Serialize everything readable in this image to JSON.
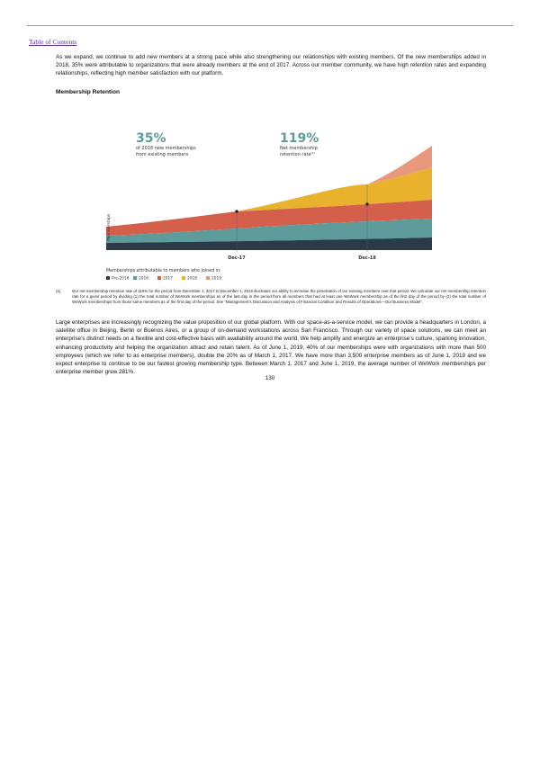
{
  "header": {
    "link": "Table of Contents"
  },
  "paragraphs": [
    "As we expand, we continue to add new members at a strong pace while also strengthening our relationships with existing members. Of the new memberships added in 2018, 35% were attributable to organizations that were already members at the end of 2017. Across our member community, we have high retention rates and expanding relationships, reflecting high member satisfaction with our platform.",
    "Large enterprises are increasingly recognizing the value proposition of our global platform. With our space-as-a-service model, we can provide a headquarters in London, a satellite office in Beijing, Berlin or Buenos Aires, or a group of on-demand workstations across San Francisco. Through our variety of space solutions, we can meet an enterprise’s distinct needs on a flexible and cost-effective basis with availability around the world. We help amplify and energize an enterprise’s culture, sparking innovation, enhancing productivity and helping the organization attract and retain talent. As of June 1, 2019, 40% of our memberships were with organizations with more than 500 employees (which we refer to as enterprise members), double the 20% as of March 1, 2017. We have more than 3,500 enterprise members as of June 1, 2019 and we expect enterprise to continue to be our fastest growing membership type. Between March 1, 2017 and June 1, 2019, the average number of WeWork memberships per enterprise member grew 281%."
  ],
  "section_heading": "Membership Retention",
  "chart": {
    "stat1": {
      "value": "35%",
      "line1": "of 2018 new memberships",
      "line2": "from existing members"
    },
    "stat2": {
      "value": "119%",
      "line1": "Net membership",
      "line2": "retention rate",
      "note": "(1)"
    },
    "y_label": "Memberships",
    "x_labels": [
      "Dec-17",
      "Dec-18"
    ],
    "legend": {
      "title": "Memberships attributable to members who joined in:",
      "items": [
        {
          "name": "Pre-2016",
          "color": "#2b3a48"
        },
        {
          "name": "2016",
          "color": "#5d9c9b"
        },
        {
          "name": "2017",
          "color": "#d4604c"
        },
        {
          "name": "2018",
          "color": "#e9b22c"
        },
        {
          "name": "2019",
          "color": "#e9987c"
        }
      ]
    }
  },
  "footnote": {
    "number": "(1)",
    "text": "Our net membership retention rate of 119% for the period from December 1, 2017 to December 1, 2018 illustrates our ability to increase the penetration of our existing members over that period. We calculate our net membership retention rate for a given period by dividing (1) the total number of WeWork memberships as of the last day in the period from all members that had at least one WeWork membership as of the first day of the period by (2) the total number of WeWork memberships from those same members as of the first day of the period. See “Management’s Discussion and Analysis of Financial Condition and Results of Operations—Our Business Model”."
  },
  "page_number": "130"
}
